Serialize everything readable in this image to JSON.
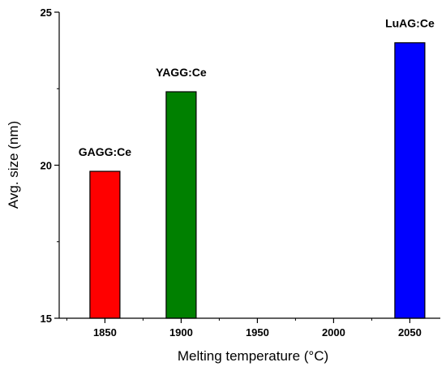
{
  "chart_data": {
    "type": "bar",
    "title": "",
    "xlabel": "Melting temperature (°C)",
    "ylabel": "Avg. size (nm)",
    "xlim": [
      1820,
      2070
    ],
    "ylim": [
      15,
      25
    ],
    "xticks": [
      1850,
      1900,
      1950,
      2000,
      2050
    ],
    "yticks": [
      15,
      20,
      25
    ],
    "grid": false,
    "legend": "none",
    "bars": [
      {
        "label": "GAGG:Ce",
        "x": 1850,
        "value": 19.8,
        "color": "#ff0000"
      },
      {
        "label": "YAGG:Ce",
        "x": 1900,
        "value": 22.4,
        "color": "#008000"
      },
      {
        "label": "LuAG:Ce",
        "x": 2050,
        "value": 24.0,
        "color": "#0000ff"
      }
    ]
  }
}
